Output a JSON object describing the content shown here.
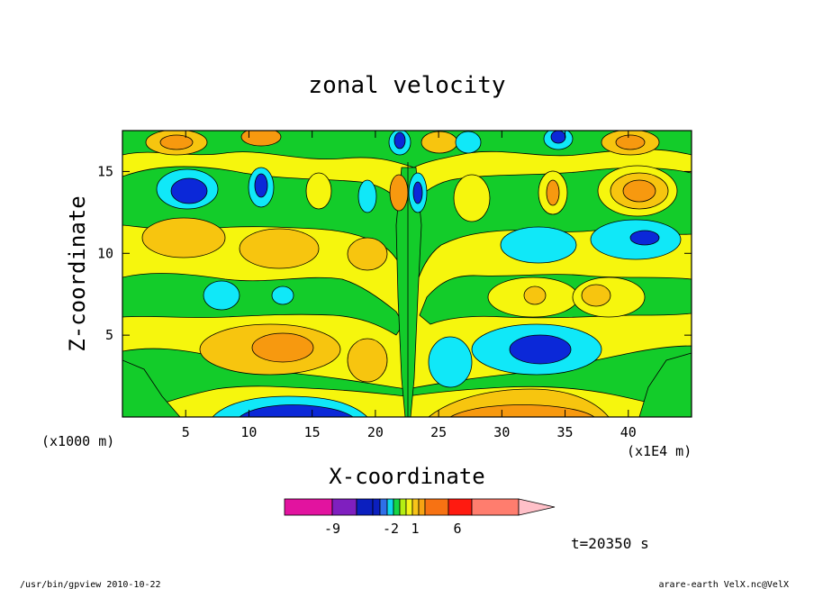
{
  "chart_data": {
    "type": "heatmap",
    "title": "zonal velocity",
    "xlabel": "X-coordinate",
    "ylabel": "Z-coordinate",
    "x_scale_note": "(x1E4 m)",
    "y_scale_note": "(x1000 m)",
    "xlim": [
      0,
      45
    ],
    "ylim": [
      0,
      17.5
    ],
    "xticks": [
      "5",
      "10",
      "15",
      "20",
      "25",
      "30",
      "35",
      "40"
    ],
    "yticks": [
      "5",
      "10",
      "15"
    ],
    "colorbar": {
      "tick_labels": [
        "-9",
        "-2",
        "1",
        "6"
      ],
      "bins": [
        {
          "color": "#e2139f"
        },
        {
          "color": "#7f1fbf"
        },
        {
          "color": "#0b1fbf"
        },
        {
          "color": "#0b1fbf"
        },
        {
          "color": "#2f6fe8"
        },
        {
          "color": "#11d6ee"
        },
        {
          "color": "#14d648"
        },
        {
          "color": "#b4ee13"
        },
        {
          "color": "#f5f519"
        },
        {
          "color": "#f8c419"
        },
        {
          "color": "#f7a413"
        },
        {
          "color": "#f77213"
        },
        {
          "color": "#ff1a10"
        },
        {
          "color": "#ff7d6e"
        },
        {
          "color": "#ffc0c8"
        }
      ]
    },
    "timestamp": "t=20350 s"
  },
  "footer": {
    "left": "/usr/bin/gpview  2010-10-22",
    "right": "arare-earth_VelX.nc@VelX"
  },
  "palette": {
    "green": "#13cc2a",
    "yellow": "#f6f60d",
    "light_orange": "#f7c50f",
    "orange": "#f7990f",
    "cyan": "#10e8f8",
    "blue": "#0b28d8",
    "navy": "#0a1fa0"
  }
}
